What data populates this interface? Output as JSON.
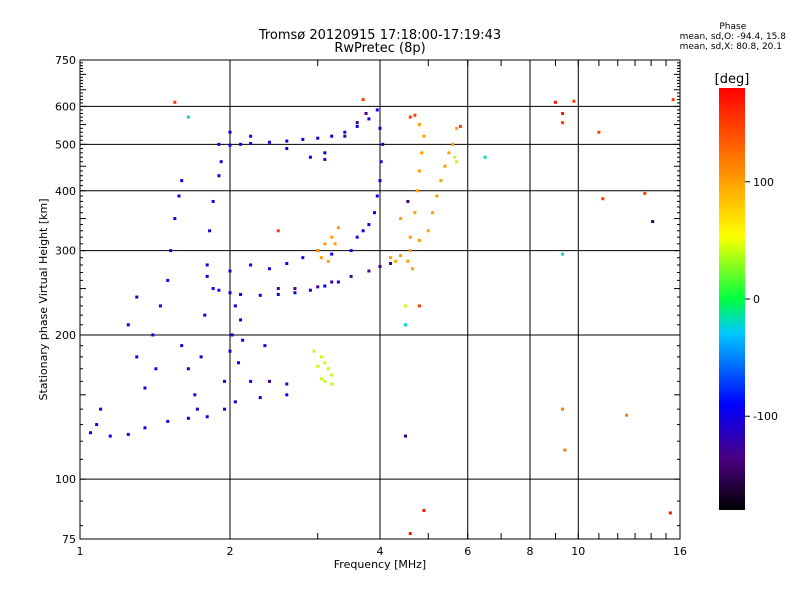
{
  "header": {
    "title_line1": "Tromsø 20120915 17:18:00-17:19:43",
    "title_line2": "RwPretec (8p)"
  },
  "phase_box": {
    "title": "Phase",
    "line_o": "mean, sd,O: -94.4, 15.8",
    "line_x": "mean, sd,X:  80.8, 20.1"
  },
  "chart_data": {
    "type": "scatter",
    "xlabel": "Frequency [MHz]",
    "ylabel": "Stationary phase Virtual Height [km]",
    "xscale": "log",
    "yscale": "log",
    "xlim": [
      1,
      16
    ],
    "ylim": [
      75,
      750
    ],
    "x_ticks": [
      1,
      2,
      4,
      6,
      8,
      10,
      16
    ],
    "x_tick_labels": [
      "1",
      "2",
      "4",
      "6",
      "8",
      "10",
      "16"
    ],
    "y_ticks": [
      75,
      100,
      200,
      300,
      400,
      500,
      600,
      750
    ],
    "y_tick_labels": [
      "75",
      "100",
      "200",
      "300",
      "400",
      "500",
      "600",
      "750"
    ],
    "grid": true,
    "colorbar": {
      "label": "[deg]",
      "range": [
        -180,
        180
      ],
      "ticks": [
        -100,
        0,
        100
      ],
      "tick_labels": [
        "-100",
        "0",
        "100"
      ]
    },
    "series": [
      {
        "points": [
          [
            1.05,
            125
          ],
          [
            1.15,
            123
          ],
          [
            1.25,
            124
          ],
          [
            1.35,
            128
          ],
          [
            1.5,
            132
          ],
          [
            1.65,
            134
          ],
          [
            1.8,
            135
          ],
          [
            1.95,
            140
          ],
          [
            2.05,
            145
          ],
          [
            2.3,
            148
          ],
          [
            2.6,
            150
          ],
          [
            1.4,
            200
          ],
          [
            1.42,
            170
          ],
          [
            1.45,
            230
          ],
          [
            1.5,
            260
          ],
          [
            1.52,
            300
          ],
          [
            1.55,
            350
          ],
          [
            1.58,
            390
          ],
          [
            1.6,
            420
          ],
          [
            1.72,
            140
          ],
          [
            1.75,
            180
          ],
          [
            1.78,
            220
          ],
          [
            1.8,
            280
          ],
          [
            1.82,
            330
          ],
          [
            1.85,
            380
          ],
          [
            1.9,
            430
          ],
          [
            1.92,
            460
          ],
          [
            1.95,
            160
          ],
          [
            2.0,
            185
          ],
          [
            2.02,
            200
          ],
          [
            2.05,
            230
          ],
          [
            2.08,
            175
          ],
          [
            2.12,
            195
          ],
          [
            1.85,
            250
          ],
          [
            1.9,
            248
          ],
          [
            2.0,
            245
          ],
          [
            2.1,
            243
          ],
          [
            2.3,
            242
          ],
          [
            2.5,
            243
          ],
          [
            2.7,
            245
          ],
          [
            2.9,
            248
          ],
          [
            3.1,
            253
          ],
          [
            3.3,
            258
          ],
          [
            1.8,
            265
          ],
          [
            2.0,
            272
          ],
          [
            2.2,
            280
          ],
          [
            2.4,
            275
          ],
          [
            2.6,
            282
          ],
          [
            2.8,
            290
          ],
          [
            3.0,
            300
          ],
          [
            3.2,
            295
          ],
          [
            1.9,
            500
          ],
          [
            2.0,
            498
          ],
          [
            2.1,
            500
          ],
          [
            2.2,
            502
          ],
          [
            2.4,
            505
          ],
          [
            2.6,
            508
          ],
          [
            2.8,
            512
          ],
          [
            3.0,
            515
          ],
          [
            3.2,
            520
          ],
          [
            3.4,
            530
          ],
          [
            3.6,
            545
          ],
          [
            3.8,
            565
          ],
          [
            3.95,
            590
          ],
          [
            2.0,
            530
          ],
          [
            2.2,
            520
          ],
          [
            2.6,
            490
          ],
          [
            2.9,
            470
          ],
          [
            3.1,
            480
          ],
          [
            3.5,
            300
          ],
          [
            3.6,
            320
          ],
          [
            3.7,
            330
          ],
          [
            3.8,
            340
          ],
          [
            3.9,
            360
          ],
          [
            3.95,
            390
          ],
          [
            4.0,
            420
          ],
          [
            4.02,
            460
          ],
          [
            4.05,
            500
          ],
          [
            4.0,
            540
          ],
          [
            1.3,
            180
          ],
          [
            1.35,
            155
          ],
          [
            1.6,
            190
          ],
          [
            1.1,
            140
          ],
          [
            1.08,
            130
          ],
          [
            1.3,
            240
          ],
          [
            1.25,
            210
          ],
          [
            2.1,
            215
          ],
          [
            2.2,
            160
          ],
          [
            1.7,
            150
          ],
          [
            1.65,
            170
          ],
          [
            2.35,
            190
          ]
        ],
        "phase": -100
      },
      {
        "points": [
          [
            3.0,
            252
          ],
          [
            3.2,
            258
          ],
          [
            3.5,
            265
          ],
          [
            3.8,
            272
          ],
          [
            4.0,
            278
          ],
          [
            4.2,
            282
          ],
          [
            2.7,
            250
          ],
          [
            2.5,
            250
          ],
          [
            3.6,
            555
          ],
          [
            3.75,
            580
          ],
          [
            3.4,
            520
          ],
          [
            3.1,
            465
          ],
          [
            2.4,
            160
          ],
          [
            2.6,
            158
          ]
        ],
        "phase": -130
      },
      {
        "points": [
          [
            4.2,
            290
          ],
          [
            4.4,
            293
          ],
          [
            4.6,
            300
          ],
          [
            4.8,
            315
          ],
          [
            5.0,
            330
          ],
          [
            5.1,
            360
          ],
          [
            5.2,
            390
          ],
          [
            5.3,
            420
          ],
          [
            5.4,
            450
          ],
          [
            5.5,
            480
          ],
          [
            5.6,
            500
          ],
          [
            4.6,
            320
          ],
          [
            4.7,
            360
          ],
          [
            4.75,
            400
          ],
          [
            4.8,
            440
          ],
          [
            4.85,
            480
          ],
          [
            4.9,
            520
          ],
          [
            4.8,
            550
          ],
          [
            4.65,
            275
          ],
          [
            4.55,
            285
          ],
          [
            4.3,
            285
          ],
          [
            5.7,
            540
          ],
          [
            4.4,
            350
          ],
          [
            3.0,
            300
          ],
          [
            3.1,
            310
          ],
          [
            3.2,
            320
          ],
          [
            3.05,
            290
          ],
          [
            3.3,
            335
          ],
          [
            3.15,
            285
          ],
          [
            3.25,
            310
          ]
        ],
        "phase": 100
      },
      {
        "points": [
          [
            3.05,
            180
          ],
          [
            3.1,
            175
          ],
          [
            3.15,
            170
          ],
          [
            3.2,
            165
          ],
          [
            3.1,
            160
          ],
          [
            3.05,
            162
          ],
          [
            3.2,
            158
          ],
          [
            2.95,
            185
          ],
          [
            3.0,
            172
          ],
          [
            4.5,
            230
          ],
          [
            5.7,
            460
          ],
          [
            5.65,
            470
          ]
        ],
        "phase": 40
      },
      {
        "points": [
          [
            4.6,
            570
          ],
          [
            4.7,
            575
          ],
          [
            5.8,
            545
          ],
          [
            1.55,
            612
          ],
          [
            3.7,
            620
          ],
          [
            9.3,
            555
          ],
          [
            9.8,
            615
          ],
          [
            11.0,
            530
          ],
          [
            11.2,
            385
          ],
          [
            13.6,
            395
          ],
          [
            15.5,
            620
          ],
          [
            4.8,
            230
          ],
          [
            2.5,
            330
          ]
        ],
        "phase": 150
      },
      {
        "points": [
          [
            9.3,
            580
          ],
          [
            9.0,
            612
          ],
          [
            15.3,
            85
          ],
          [
            4.9,
            86
          ],
          [
            4.6,
            77
          ]
        ],
        "phase": 170
      },
      {
        "points": [
          [
            6.5,
            470
          ],
          [
            9.3,
            295
          ],
          [
            1.65,
            570
          ],
          [
            4.5,
            210
          ]
        ],
        "phase": -20
      },
      {
        "points": [
          [
            14.1,
            345
          ],
          [
            4.5,
            123
          ],
          [
            4.55,
            380
          ]
        ],
        "phase": -150
      },
      {
        "points": [
          [
            9.3,
            140
          ],
          [
            12.5,
            136
          ],
          [
            9.4,
            115
          ]
        ],
        "phase": 120
      }
    ]
  }
}
